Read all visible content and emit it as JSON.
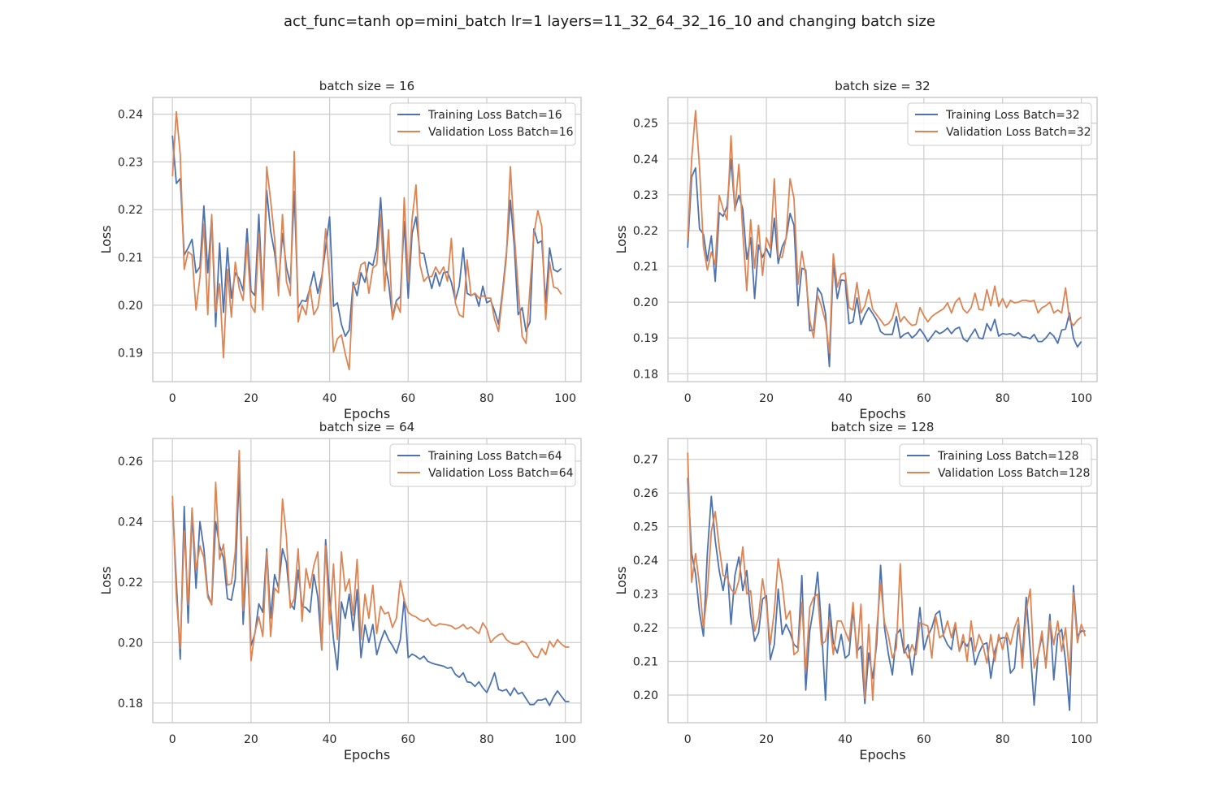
{
  "figure": {
    "suptitle": "act_func=tanh op=mini_batch lr=1 layers=11_32_64_32_16_10 and changing batch size"
  },
  "colors": {
    "training": "#4c72b0",
    "validation": "#dd8452",
    "grid": "#cccccc",
    "frame": "#cccccc"
  },
  "chart_data": [
    {
      "type": "line",
      "title": "batch size = 16",
      "xlabel": "Epochs",
      "ylabel": "Loss",
      "xlim": [
        -5,
        104
      ],
      "ylim": [
        0.184,
        0.2435
      ],
      "xticks": [
        0,
        20,
        40,
        60,
        80,
        100
      ],
      "yticks": [
        0.19,
        0.2,
        0.21,
        0.22,
        0.23,
        0.24
      ],
      "ytick_labels": [
        "0.19",
        "0.20",
        "0.21",
        "0.22",
        "0.23",
        "0.24"
      ],
      "grid": true,
      "legend": "upper right",
      "series": [
        {
          "name": "Training Loss Batch=16",
          "color": "#4c72b0",
          "values": [
            0.2355,
            0.2255,
            0.2265,
            0.2105,
            0.212,
            0.2138,
            0.2068,
            0.208,
            0.2208,
            0.2068,
            0.2185,
            0.1955,
            0.213,
            0.1985,
            0.212,
            0.2015,
            0.2068,
            0.2055,
            0.203,
            0.216,
            0.203,
            0.202,
            0.219,
            0.201,
            0.224,
            0.2155,
            0.211,
            0.204,
            0.215,
            0.208,
            0.2045,
            0.2238,
            0.1995,
            0.201,
            0.2008,
            0.2035,
            0.207,
            0.2025,
            0.206,
            0.212,
            0.2185,
            0.1998,
            0.2005,
            0.196,
            0.1935,
            0.1948,
            0.2048,
            0.202,
            0.2068,
            0.2048,
            0.209,
            0.2083,
            0.212,
            0.2225,
            0.209,
            0.2048,
            0.1975,
            0.201,
            0.2018,
            0.2175,
            0.2015,
            0.215,
            0.2185,
            0.211,
            0.2108,
            0.2068,
            0.2035,
            0.2068,
            0.204,
            0.2068,
            0.207,
            0.2048,
            0.201,
            0.204,
            0.212,
            0.2025,
            0.202,
            0.2025,
            0.1998,
            0.204,
            0.2005,
            0.201,
            0.1988,
            0.196,
            0.2028,
            0.2108,
            0.222,
            0.2125,
            0.198,
            0.1995,
            0.1945,
            0.1965,
            0.216,
            0.213,
            0.2135,
            0.2005,
            0.212,
            0.2075,
            0.207,
            0.2077
          ]
        },
        {
          "name": "Validation Loss Batch=16",
          "color": "#dd8452",
          "values": [
            0.227,
            0.2405,
            0.2315,
            0.2075,
            0.2112,
            0.2105,
            0.199,
            0.2058,
            0.217,
            0.198,
            0.219,
            0.1985,
            0.2045,
            0.189,
            0.2075,
            0.1975,
            0.209,
            0.2035,
            0.201,
            0.213,
            0.2,
            0.1985,
            0.215,
            0.199,
            0.229,
            0.222,
            0.214,
            0.202,
            0.219,
            0.205,
            0.202,
            0.2322,
            0.1965,
            0.2,
            0.198,
            0.204,
            0.198,
            0.1995,
            0.205,
            0.216,
            0.2055,
            0.1902,
            0.193,
            0.1938,
            0.1898,
            0.1865,
            0.204,
            0.2045,
            0.2085,
            0.209,
            0.2025,
            0.2078,
            0.2085,
            0.219,
            0.203,
            0.2158,
            0.197,
            0.2005,
            0.1985,
            0.2225,
            0.205,
            0.218,
            0.2252,
            0.2085,
            0.205,
            0.206,
            0.206,
            0.208,
            0.2065,
            0.208,
            0.205,
            0.214,
            0.2005,
            0.198,
            0.1975,
            0.2095,
            0.202,
            0.2025,
            0.2015,
            0.202,
            0.2015,
            0.2015,
            0.197,
            0.1945,
            0.202,
            0.21,
            0.229,
            0.215,
            0.2035,
            0.1935,
            0.192,
            0.2035,
            0.215,
            0.2198,
            0.2165,
            0.197,
            0.209,
            0.2038,
            0.2035,
            0.2023
          ]
        }
      ]
    },
    {
      "type": "line",
      "title": "batch size = 32",
      "xlabel": "Epochs",
      "ylabel": "Loss",
      "xlim": [
        -5,
        104
      ],
      "ylim": [
        0.1778,
        0.2572
      ],
      "xticks": [
        0,
        20,
        40,
        60,
        80,
        100
      ],
      "yticks": [
        0.18,
        0.19,
        0.2,
        0.21,
        0.22,
        0.23,
        0.24,
        0.25
      ],
      "ytick_labels": [
        "0.18",
        "0.19",
        "0.20",
        "0.21",
        "0.22",
        "0.23",
        "0.24",
        "0.25"
      ],
      "grid": true,
      "legend": "upper right",
      "series": [
        {
          "name": "Training Loss Batch=32",
          "color": "#4c72b0",
          "values": [
            0.2152,
            0.235,
            0.2375,
            0.2205,
            0.219,
            0.2115,
            0.2185,
            0.2058,
            0.225,
            0.224,
            0.2268,
            0.24,
            0.226,
            0.2298,
            0.226,
            0.212,
            0.218,
            0.201,
            0.216,
            0.2125,
            0.215,
            0.2125,
            0.2235,
            0.2108,
            0.2155,
            0.2178,
            0.2248,
            0.2215,
            0.199,
            0.2095,
            0.209,
            0.192,
            0.1922,
            0.204,
            0.2022,
            0.1968,
            0.182,
            0.211,
            0.201,
            0.2062,
            0.206,
            0.194,
            0.1945,
            0.2012,
            0.1938,
            0.1965,
            0.1985,
            0.1968,
            0.195,
            0.1918,
            0.191,
            0.191,
            0.191,
            0.196,
            0.19,
            0.191,
            0.1915,
            0.19,
            0.191,
            0.1925,
            0.191,
            0.189,
            0.1905,
            0.192,
            0.1912,
            0.1918,
            0.1928,
            0.1912,
            0.1925,
            0.193,
            0.1898,
            0.189,
            0.1908,
            0.1925,
            0.19,
            0.1898,
            0.194,
            0.192,
            0.1952,
            0.1905,
            0.1912,
            0.191,
            0.1912,
            0.1906,
            0.1915,
            0.1903,
            0.1902,
            0.1898,
            0.191,
            0.189,
            0.189,
            0.19,
            0.1915,
            0.1905,
            0.1885,
            0.1922,
            0.1925,
            0.197,
            0.19,
            0.1875,
            0.189
          ]
        },
        {
          "name": "Validation Loss Batch=32",
          "color": "#dd8452",
          "values": [
            0.2175,
            0.24,
            0.2535,
            0.2375,
            0.2155,
            0.209,
            0.214,
            0.2105,
            0.2298,
            0.226,
            0.223,
            0.2465,
            0.2255,
            0.2385,
            0.2195,
            0.2032,
            0.223,
            0.2095,
            0.2215,
            0.2075,
            0.218,
            0.215,
            0.2345,
            0.2128,
            0.2125,
            0.218,
            0.2345,
            0.229,
            0.205,
            0.2142,
            0.2075,
            0.195,
            0.19,
            0.202,
            0.1988,
            0.1945,
            0.1858,
            0.2135,
            0.2042,
            0.2078,
            0.2082,
            0.1985,
            0.1978,
            0.2055,
            0.197,
            0.199,
            0.2035,
            0.198,
            0.1965,
            0.195,
            0.1935,
            0.194,
            0.1955,
            0.1998,
            0.1945,
            0.196,
            0.1945,
            0.1935,
            0.1938,
            0.1985,
            0.1962,
            0.1945,
            0.196,
            0.1968,
            0.1975,
            0.1982,
            0.1998,
            0.197,
            0.2,
            0.2012,
            0.198,
            0.197,
            0.1985,
            0.2025,
            0.198,
            0.1978,
            0.2035,
            0.199,
            0.2045,
            0.1988,
            0.201,
            0.1985,
            0.2005,
            0.1998,
            0.2,
            0.2005,
            0.2005,
            0.2002,
            0.2005,
            0.197,
            0.1985,
            0.199,
            0.2,
            0.197,
            0.1978,
            0.197,
            0.204,
            0.195,
            0.1935,
            0.195,
            0.1958
          ]
        }
      ]
    },
    {
      "type": "line",
      "title": "batch size = 64",
      "xlabel": "Epochs",
      "ylabel": "Loss",
      "xlim": [
        -5,
        104
      ],
      "ylim": [
        0.1735,
        0.2675
      ],
      "xticks": [
        0,
        20,
        40,
        60,
        80,
        100
      ],
      "yticks": [
        0.18,
        0.2,
        0.22,
        0.24,
        0.26
      ],
      "ytick_labels": [
        "0.18",
        "0.20",
        "0.22",
        "0.24",
        "0.26"
      ],
      "grid": true,
      "legend": "upper right",
      "series": [
        {
          "name": "Training Loss Batch=64",
          "color": "#4c72b0",
          "values": [
            0.2465,
            0.22,
            0.1945,
            0.245,
            0.2065,
            0.243,
            0.218,
            0.24,
            0.231,
            0.216,
            0.2125,
            0.24,
            0.232,
            0.228,
            0.2145,
            0.214,
            0.221,
            0.257,
            0.206,
            0.23,
            0.199,
            0.203,
            0.2128,
            0.21,
            0.231,
            0.208,
            0.2225,
            0.218,
            0.231,
            0.2265,
            0.213,
            0.211,
            0.224,
            0.212,
            0.2115,
            0.21,
            0.2225,
            0.215,
            0.1975,
            0.234,
            0.215,
            0.201,
            0.191,
            0.2135,
            0.208,
            0.216,
            0.204,
            0.2175,
            0.195,
            0.2058,
            0.2,
            0.206,
            0.196,
            0.2005,
            0.204,
            0.201,
            0.199,
            0.1965,
            0.201,
            0.2145,
            0.195,
            0.1962,
            0.1955,
            0.1945,
            0.1955,
            0.1938,
            0.1932,
            0.1928,
            0.1925,
            0.1922,
            0.1915,
            0.1918,
            0.1895,
            0.1885,
            0.19,
            0.187,
            0.1868,
            0.1855,
            0.187,
            0.185,
            0.1835,
            0.1865,
            0.19,
            0.1845,
            0.184,
            0.1845,
            0.1825,
            0.185,
            0.183,
            0.1835,
            0.1815,
            0.1795,
            0.1795,
            0.181,
            0.181,
            0.1815,
            0.1792,
            0.182,
            0.184,
            0.1822,
            0.1805,
            0.1805
          ]
        },
        {
          "name": "Validation Loss Batch=64",
          "color": "#dd8452",
          "values": [
            0.2485,
            0.215,
            0.198,
            0.237,
            0.2125,
            0.2445,
            0.224,
            0.232,
            0.228,
            0.215,
            0.2125,
            0.253,
            0.2275,
            0.2325,
            0.219,
            0.2195,
            0.23,
            0.2635,
            0.2105,
            0.235,
            0.194,
            0.2035,
            0.2085,
            0.202,
            0.23,
            0.202,
            0.218,
            0.2165,
            0.2475,
            0.235,
            0.2115,
            0.2145,
            0.231,
            0.207,
            0.2245,
            0.218,
            0.2255,
            0.23,
            0.1975,
            0.232,
            0.206,
            0.226,
            0.201,
            0.23,
            0.217,
            0.221,
            0.209,
            0.2275,
            0.201,
            0.216,
            0.208,
            0.219,
            0.203,
            0.212,
            0.2095,
            0.21,
            0.205,
            0.208,
            0.2205,
            0.214,
            0.21,
            0.209,
            0.2085,
            0.2075,
            0.207,
            0.208,
            0.206,
            0.2055,
            0.2062,
            0.206,
            0.2058,
            0.2055,
            0.2045,
            0.205,
            0.206,
            0.2045,
            0.2052,
            0.204,
            0.203,
            0.2065,
            0.2045,
            0.2,
            0.2015,
            0.2025,
            0.203,
            0.201,
            0.2,
            0.1995,
            0.1995,
            0.2005,
            0.1998,
            0.1975,
            0.1955,
            0.195,
            0.198,
            0.196,
            0.2005,
            0.1985,
            0.201,
            0.1995,
            0.1985,
            0.1985
          ]
        }
      ]
    },
    {
      "type": "line",
      "title": "batch size = 128",
      "xlabel": "Epochs",
      "ylabel": "Loss",
      "xlim": [
        -5,
        104
      ],
      "ylim": [
        0.1918,
        0.2762
      ],
      "xticks": [
        0,
        20,
        40,
        60,
        80,
        100
      ],
      "yticks": [
        0.2,
        0.21,
        0.22,
        0.23,
        0.24,
        0.25,
        0.26,
        0.27
      ],
      "ytick_labels": [
        "0.20",
        "0.21",
        "0.22",
        "0.23",
        "0.24",
        "0.25",
        "0.26",
        "0.27"
      ],
      "grid": true,
      "legend": "upper right",
      "series": [
        {
          "name": "Training Loss Batch=128",
          "color": "#4c72b0",
          "values": [
            0.2645,
            0.242,
            0.236,
            0.2245,
            0.2175,
            0.242,
            0.259,
            0.246,
            0.237,
            0.231,
            0.239,
            0.221,
            0.2355,
            0.241,
            0.231,
            0.237,
            0.224,
            0.216,
            0.2185,
            0.2285,
            0.2295,
            0.2105,
            0.215,
            0.2315,
            0.218,
            0.221,
            0.2185,
            0.215,
            0.214,
            0.2355,
            0.2015,
            0.219,
            0.226,
            0.2365,
            0.22,
            0.1985,
            0.227,
            0.2155,
            0.2125,
            0.218,
            0.211,
            0.212,
            0.2255,
            0.213,
            0.2145,
            0.1975,
            0.2125,
            0.205,
            0.215,
            0.2385,
            0.22,
            0.212,
            0.206,
            0.218,
            0.2195,
            0.2125,
            0.215,
            0.206,
            0.215,
            0.226,
            0.2135,
            0.2175,
            0.22,
            0.224,
            0.225,
            0.2175,
            0.215,
            0.2135,
            0.221,
            0.213,
            0.216,
            0.2145,
            0.217,
            0.209,
            0.2125,
            0.215,
            0.2155,
            0.205,
            0.213,
            0.2165,
            0.217,
            0.217,
            0.2065,
            0.208,
            0.221,
            0.211,
            0.229,
            0.2135,
            0.197,
            0.212,
            0.2175,
            0.209,
            0.224,
            0.2045,
            0.218,
            0.2195,
            0.21,
            0.1955,
            0.2325,
            0.2175,
            0.219,
            0.219
          ]
        },
        {
          "name": "Validation Loss Batch=128",
          "color": "#dd8452",
          "values": [
            0.272,
            0.2335,
            0.242,
            0.2325,
            0.22,
            0.2305,
            0.2485,
            0.2545,
            0.244,
            0.2355,
            0.235,
            0.2315,
            0.23,
            0.234,
            0.244,
            0.23,
            0.231,
            0.219,
            0.223,
            0.2345,
            0.227,
            0.215,
            0.225,
            0.2405,
            0.233,
            0.2225,
            0.225,
            0.212,
            0.213,
            0.2275,
            0.207,
            0.226,
            0.229,
            0.23,
            0.215,
            0.216,
            0.2225,
            0.212,
            0.222,
            0.222,
            0.219,
            0.216,
            0.2275,
            0.211,
            0.227,
            0.199,
            0.221,
            0.1985,
            0.219,
            0.2335,
            0.2215,
            0.2175,
            0.211,
            0.214,
            0.239,
            0.214,
            0.211,
            0.215,
            0.212,
            0.2215,
            0.221,
            0.2205,
            0.211,
            0.2235,
            0.217,
            0.218,
            0.222,
            0.217,
            0.2215,
            0.213,
            0.218,
            0.21,
            0.222,
            0.213,
            0.218,
            0.215,
            0.2095,
            0.218,
            0.21,
            0.218,
            0.2135,
            0.2185,
            0.215,
            0.22,
            0.223,
            0.208,
            0.225,
            0.2315,
            0.208,
            0.212,
            0.219,
            0.208,
            0.222,
            0.215,
            0.222,
            0.213,
            0.22,
            0.206,
            0.2305,
            0.2155,
            0.221,
            0.2175
          ]
        }
      ]
    }
  ]
}
